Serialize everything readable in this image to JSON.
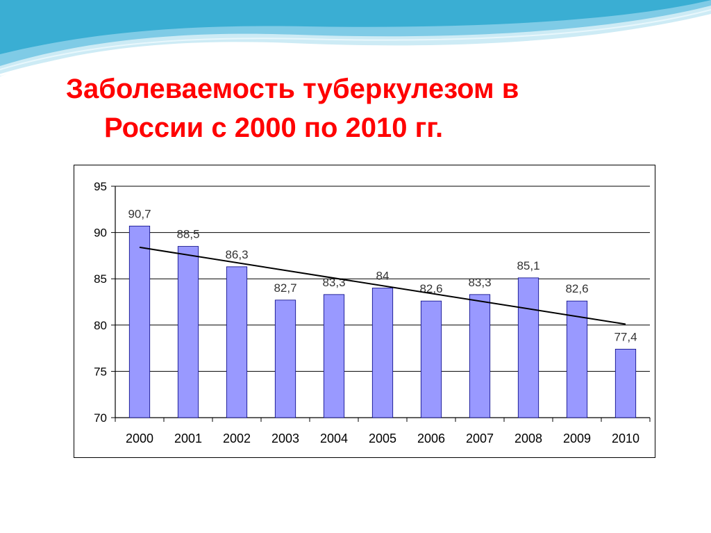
{
  "slide": {
    "title_line1": "Заболеваемость туберкулезом в",
    "title_line2": "России с  2000 по 2010 гг."
  },
  "colors": {
    "title": "#ff0000",
    "bar_fill": "#9999ff",
    "bar_stroke": "#000080",
    "trend": "#000000",
    "wave_primary": "#4fb6d8",
    "wave_light": "#bfe6f3"
  },
  "chart_data": {
    "type": "bar",
    "categories": [
      "2000",
      "2001",
      "2002",
      "2003",
      "2004",
      "2005",
      "2006",
      "2007",
      "2008",
      "2009",
      "2010"
    ],
    "values": [
      90.7,
      88.5,
      86.3,
      82.7,
      83.3,
      84,
      82.6,
      83.3,
      85.1,
      82.6,
      77.4
    ],
    "data_labels": [
      "90,7",
      "88,5",
      "86,3",
      "82,7",
      "83,3",
      "84",
      "82,6",
      "83,3",
      "85,1",
      "82,6",
      "77,4"
    ],
    "title": "",
    "xlabel": "",
    "ylabel": "",
    "ylim": [
      70,
      95
    ],
    "yticks": [
      70,
      75,
      80,
      85,
      90,
      95
    ],
    "grid": true,
    "legend": "none",
    "trendline": {
      "type": "linear",
      "x_start": "2000",
      "x_end": "2010",
      "y_start": 88.4,
      "y_end": 80.1
    }
  }
}
